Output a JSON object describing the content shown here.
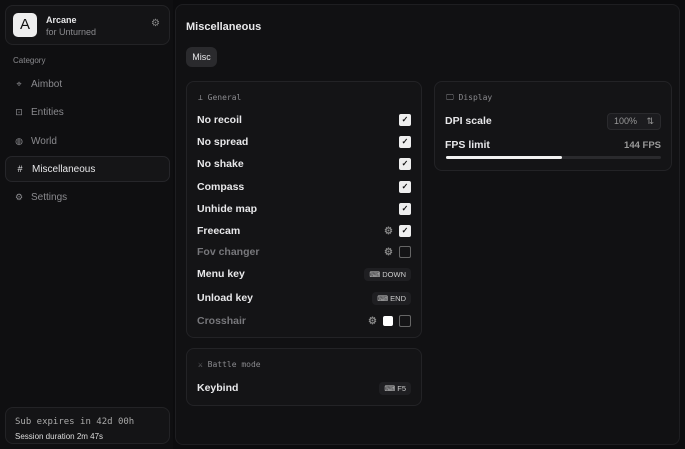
{
  "app": {
    "logo_letter": "A",
    "name": "Arcane",
    "subtitle": "for Unturned"
  },
  "sidebar": {
    "category_label": "Category",
    "items": [
      {
        "label": "Aimbot",
        "icon": "crosshair-icon",
        "selected": false
      },
      {
        "label": "Entities",
        "icon": "scan-icon",
        "selected": false
      },
      {
        "label": "World",
        "icon": "globe-icon",
        "selected": false
      },
      {
        "label": "Miscellaneous",
        "icon": "grid-icon",
        "selected": true
      },
      {
        "label": "Settings",
        "icon": "gear-icon",
        "selected": false
      }
    ]
  },
  "subscription": {
    "expires": "Sub expires in 42d 00h",
    "session": "Session duration 2m 47s"
  },
  "main": {
    "title": "Miscellaneous",
    "tab": "Misc"
  },
  "general": {
    "title": "General",
    "rows": [
      {
        "label": "No recoil",
        "checked": true
      },
      {
        "label": "No spread",
        "checked": true
      },
      {
        "label": "No shake",
        "checked": true
      },
      {
        "label": "Compass",
        "checked": true
      },
      {
        "label": "Unhide map",
        "checked": true
      },
      {
        "label": "Freecam",
        "checked": true,
        "gear": true
      },
      {
        "label": "Fov changer",
        "checked": false,
        "gear": true,
        "dim": true
      },
      {
        "label": "Menu key",
        "key": "DOWN"
      },
      {
        "label": "Unload key",
        "key": "END"
      },
      {
        "label": "Crosshair",
        "checked": false,
        "gear": true,
        "dim": true,
        "color": "#ffffff"
      }
    ]
  },
  "display": {
    "title": "Display",
    "dpi_label": "DPI scale",
    "dpi_value": "100%",
    "fps_label": "FPS limit",
    "fps_value": "144 FPS",
    "fps_slider_percent": 54
  },
  "battle": {
    "title": "Battle mode",
    "keybind_label": "Keybind",
    "keybind_value": "F5"
  }
}
